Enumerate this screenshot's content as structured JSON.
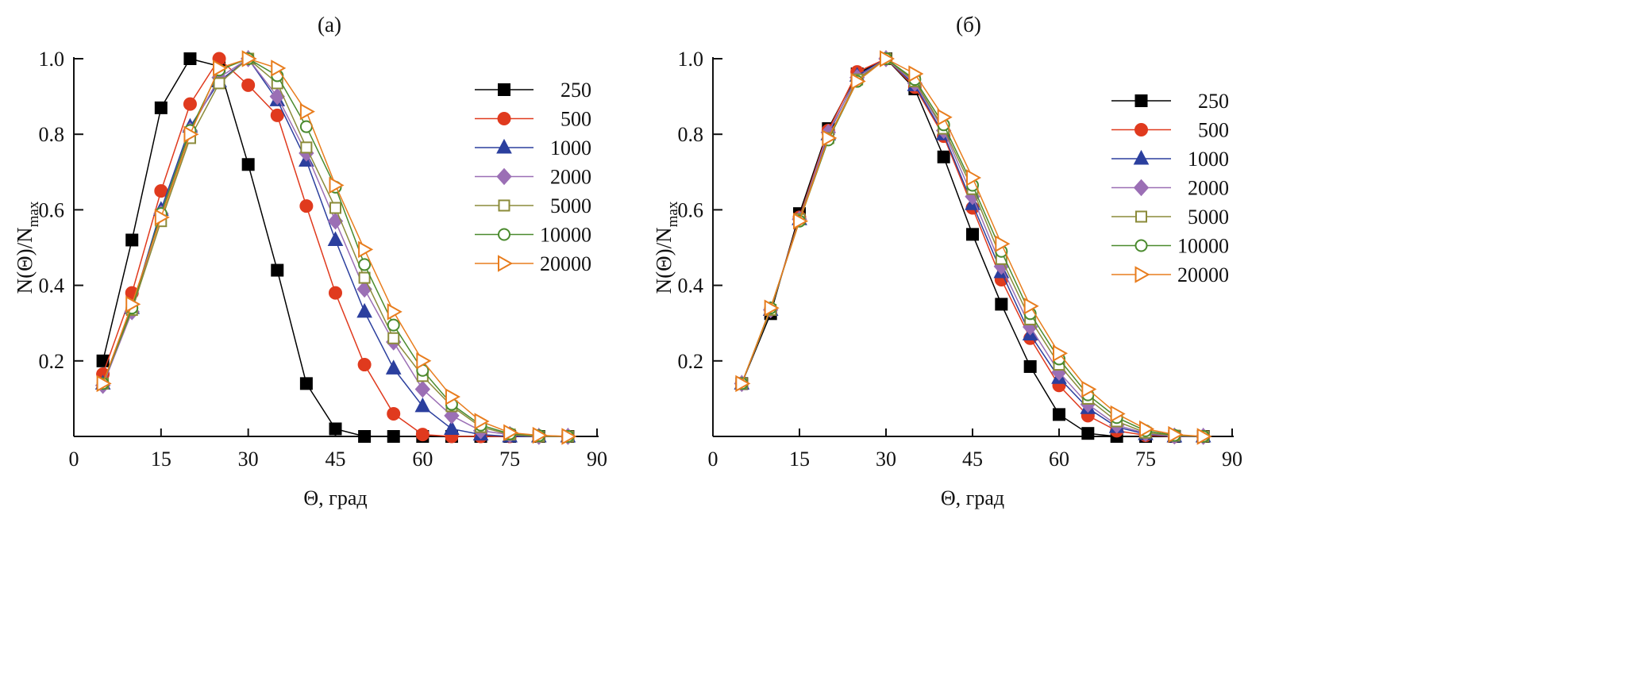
{
  "chart_data": [
    {
      "type": "line",
      "title": "(а)",
      "xlabel": "Θ, град",
      "ylabel": {
        "main": "N(Θ)/N",
        "sub": "max"
      },
      "xlim": [
        0,
        90
      ],
      "ylim": [
        0,
        1.0
      ],
      "xticks": [
        0,
        15,
        30,
        45,
        60,
        75,
        90
      ],
      "yticks": [
        0.2,
        0.4,
        0.6,
        0.8,
        1.0
      ],
      "ytick_labels": [
        "0.2",
        "0.4",
        "0.6",
        "0.8",
        "1.0"
      ],
      "grid": false,
      "legend": "top-right",
      "x": [
        5,
        10,
        15,
        20,
        25,
        30,
        35,
        40,
        45,
        50,
        55,
        60,
        65,
        70,
        75,
        80,
        85
      ],
      "series": [
        {
          "name": "250",
          "color": "#000000",
          "marker": "square-filled",
          "values": [
            0.2,
            0.52,
            0.87,
            1.0,
            0.98,
            0.72,
            0.44,
            0.14,
            0.02,
            0.0,
            0.0,
            0,
            0,
            0,
            0,
            0,
            0
          ]
        },
        {
          "name": "500",
          "color": "#e03a1e",
          "marker": "circle-filled",
          "values": [
            0.165,
            0.38,
            0.65,
            0.88,
            1.0,
            0.93,
            0.85,
            0.61,
            0.38,
            0.19,
            0.06,
            0.005,
            0,
            0,
            0,
            0,
            0
          ]
        },
        {
          "name": "1000",
          "color": "#2b3f9e",
          "marker": "triangle-up-filled",
          "values": [
            0.14,
            0.34,
            0.6,
            0.82,
            0.94,
            1.0,
            0.89,
            0.73,
            0.52,
            0.33,
            0.18,
            0.08,
            0.02,
            0.005,
            0,
            0,
            0
          ]
        },
        {
          "name": "2000",
          "color": "#9b6fb5",
          "marker": "diamond-filled",
          "values": [
            0.135,
            0.33,
            0.59,
            0.81,
            0.95,
            1.0,
            0.9,
            0.75,
            0.57,
            0.39,
            0.25,
            0.125,
            0.055,
            0.015,
            0.005,
            0,
            0
          ]
        },
        {
          "name": "5000",
          "color": "#8b8b3a",
          "marker": "square-open",
          "values": [
            0.14,
            0.335,
            0.57,
            0.79,
            0.935,
            1.0,
            0.935,
            0.765,
            0.605,
            0.42,
            0.26,
            0.16,
            0.08,
            0.025,
            0.005,
            0,
            0
          ]
        },
        {
          "name": "10000",
          "color": "#4a8a2e",
          "marker": "circle-open",
          "values": [
            0.14,
            0.34,
            0.59,
            0.81,
            0.97,
            1.0,
            0.955,
            0.82,
            0.66,
            0.455,
            0.295,
            0.175,
            0.085,
            0.03,
            0.007,
            0.002,
            0
          ]
        },
        {
          "name": "20000",
          "color": "#e87d1e",
          "marker": "triangle-right-open",
          "values": [
            0.14,
            0.35,
            0.58,
            0.8,
            0.975,
            1.0,
            0.975,
            0.86,
            0.665,
            0.495,
            0.33,
            0.2,
            0.105,
            0.04,
            0.01,
            0.003,
            0
          ]
        }
      ]
    },
    {
      "type": "line",
      "title": "(б)",
      "xlabel": "Θ, град",
      "ylabel": {
        "main": "N(Θ)/N",
        "sub": "max"
      },
      "xlim": [
        0,
        90
      ],
      "ylim": [
        0,
        1.0
      ],
      "xticks": [
        0,
        15,
        30,
        45,
        60,
        75,
        90
      ],
      "yticks": [
        0.2,
        0.4,
        0.6,
        0.8,
        1.0
      ],
      "ytick_labels": [
        "0.2",
        "0.4",
        "0.6",
        "0.8",
        "1.0"
      ],
      "grid": false,
      "legend": "top-right",
      "x": [
        5,
        10,
        15,
        20,
        25,
        30,
        35,
        40,
        45,
        50,
        55,
        60,
        65,
        70,
        75,
        80,
        85
      ],
      "series": [
        {
          "name": "250",
          "color": "#000000",
          "marker": "square-filled",
          "values": [
            0.14,
            0.325,
            0.59,
            0.815,
            0.96,
            1.0,
            0.92,
            0.74,
            0.535,
            0.35,
            0.185,
            0.058,
            0.008,
            0,
            0,
            0,
            0
          ]
        },
        {
          "name": "500",
          "color": "#e03a1e",
          "marker": "circle-filled",
          "values": [
            0.14,
            0.335,
            0.58,
            0.81,
            0.965,
            1.0,
            0.925,
            0.795,
            0.605,
            0.415,
            0.26,
            0.135,
            0.055,
            0.015,
            0.003,
            0,
            0
          ]
        },
        {
          "name": "1000",
          "color": "#2b3f9e",
          "marker": "triangle-up-filled",
          "values": [
            0.14,
            0.335,
            0.575,
            0.8,
            0.955,
            1.0,
            0.93,
            0.8,
            0.615,
            0.435,
            0.27,
            0.155,
            0.075,
            0.025,
            0.006,
            0,
            0
          ]
        },
        {
          "name": "2000",
          "color": "#9b6fb5",
          "marker": "diamond-filled",
          "values": [
            0.14,
            0.335,
            0.575,
            0.805,
            0.95,
            1.0,
            0.935,
            0.81,
            0.635,
            0.45,
            0.29,
            0.17,
            0.085,
            0.03,
            0.008,
            0.001,
            0
          ]
        },
        {
          "name": "5000",
          "color": "#8b8b3a",
          "marker": "square-open",
          "values": [
            0.14,
            0.335,
            0.575,
            0.79,
            0.945,
            1.0,
            0.94,
            0.815,
            0.655,
            0.47,
            0.31,
            0.19,
            0.1,
            0.04,
            0.01,
            0.002,
            0
          ]
        },
        {
          "name": "10000",
          "color": "#4a8a2e",
          "marker": "circle-open",
          "values": [
            0.14,
            0.34,
            0.57,
            0.785,
            0.94,
            1.0,
            0.945,
            0.825,
            0.665,
            0.49,
            0.325,
            0.205,
            0.11,
            0.05,
            0.015,
            0.003,
            0
          ]
        },
        {
          "name": "20000",
          "color": "#e87d1e",
          "marker": "triangle-right-open",
          "values": [
            0.14,
            0.34,
            0.57,
            0.79,
            0.94,
            1.0,
            0.96,
            0.845,
            0.685,
            0.51,
            0.345,
            0.22,
            0.125,
            0.06,
            0.02,
            0.005,
            0
          ]
        }
      ]
    }
  ]
}
